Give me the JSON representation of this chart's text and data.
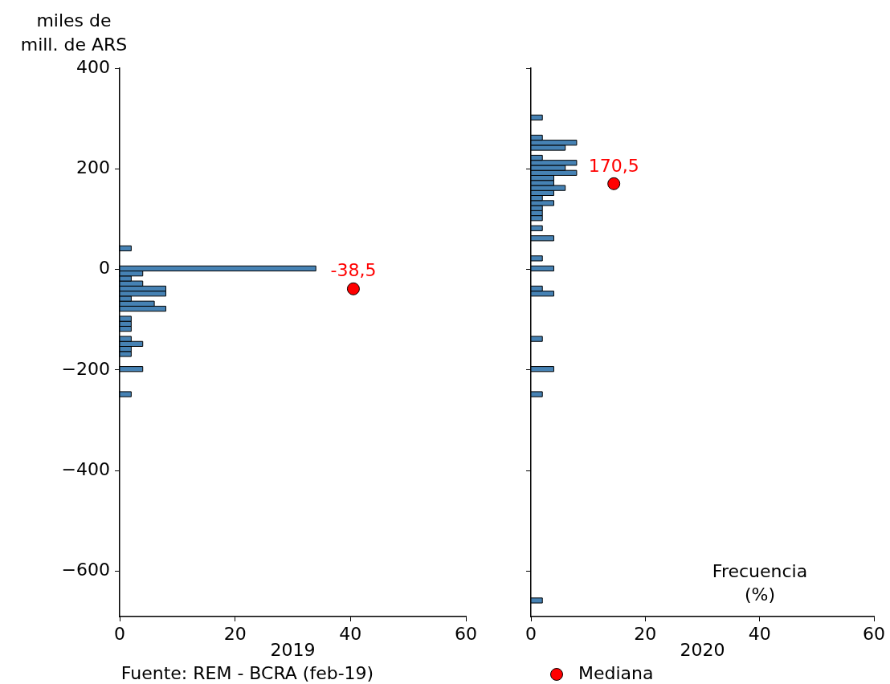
{
  "chart_data": [
    {
      "type": "histogram",
      "orientation": "horizontal",
      "color": "#4682b4",
      "ylabel": "miles de\nmill. de ARS",
      "xlabel": "2019",
      "bins": [
        -253,
        -243,
        -203,
        -193,
        -173,
        -163,
        -153,
        -143,
        -133,
        -123,
        -113,
        -103,
        -93,
        -83,
        -73,
        -63,
        -53,
        -43,
        -33,
        -23,
        -13,
        -3,
        7,
        37,
        47
      ],
      "values": [
        2,
        0,
        4,
        0,
        2,
        2,
        4,
        2,
        0,
        2,
        2,
        2,
        0,
        8,
        6,
        2,
        8,
        8,
        4,
        2,
        4,
        34,
        0,
        2
      ],
      "series": [
        {
          "type": "scatter",
          "color": "#ff0000",
          "x": [
            -38.5
          ],
          "values": [
            40.5
          ]
        }
      ],
      "xlim": [
        0,
        60
      ],
      "xticks": [
        0,
        20,
        40,
        60
      ],
      "ylim": [
        -690,
        400
      ],
      "yticks": [
        400,
        200,
        0,
        {
          "value": -200,
          "label": "−200"
        },
        {
          "value": -400,
          "label": "−400"
        },
        {
          "value": -600,
          "label": "−600"
        }
      ],
      "marker": "circle",
      "grid": false,
      "legend": false,
      "annotations": [
        "Fuente: REM - BCRA (feb-19)",
        {
          "text": "-38,5",
          "x": 40.5,
          "y": -38.5
        }
      ]
    },
    {
      "type": "histogram",
      "orientation": "horizontal",
      "color": "#4682b4",
      "xlabel": "2020",
      "bins": [
        -663,
        -653,
        -253,
        -243,
        -203,
        -193,
        -143,
        -133,
        -53,
        -43,
        -33,
        -3,
        7,
        17,
        27,
        57,
        67,
        77,
        87,
        97,
        107,
        117,
        127,
        137,
        147,
        157,
        167,
        177,
        187,
        197,
        207,
        217,
        227,
        237,
        247,
        257,
        267,
        297,
        307
      ],
      "values": [
        2,
        0,
        2,
        0,
        4,
        0,
        2,
        0,
        4,
        2,
        0,
        4,
        0,
        2,
        0,
        4,
        0,
        2,
        0,
        2,
        2,
        2,
        4,
        2,
        4,
        6,
        4,
        4,
        8,
        6,
        8,
        2,
        0,
        6,
        8,
        2,
        0,
        2
      ],
      "series": [
        {
          "type": "scatter",
          "name": "Mediana",
          "color": "#ff0000",
          "x": [
            170.5
          ],
          "values": [
            14.5
          ]
        }
      ],
      "xlim": [
        0,
        60
      ],
      "xticks": [
        0,
        20,
        40,
        60
      ],
      "ylim": [
        -690,
        400
      ],
      "yticks": [
        400,
        200,
        0,
        -200,
        -400,
        -600
      ],
      "tick_labels": "x",
      "marker": "circle",
      "grid": false,
      "legend": "bottom",
      "annotations": [
        "Frecuencia\n(%)",
        {
          "text": "170,5",
          "x": 14.5,
          "y": 170.5
        }
      ]
    }
  ]
}
